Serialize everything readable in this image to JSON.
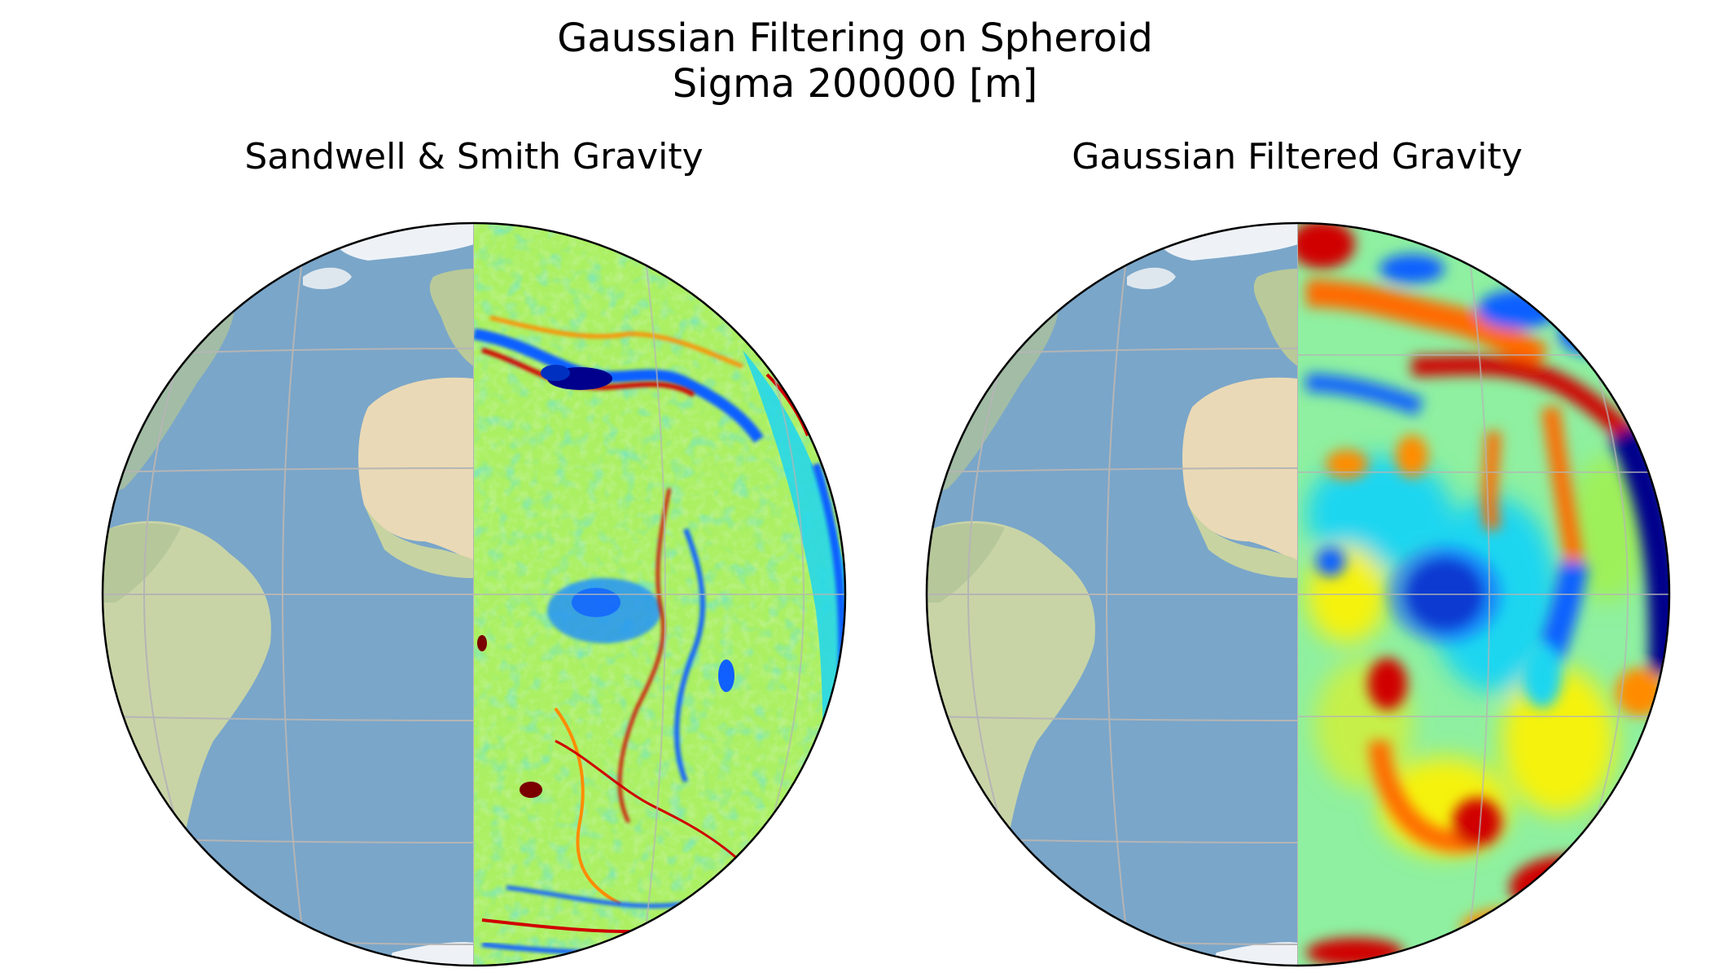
{
  "figure": {
    "suptitle_line1": "Gaussian Filtering on Spheroid",
    "suptitle_line2": "Sigma 200000 [m]"
  },
  "panels": [
    {
      "title": "Sandwell & Smith Gravity",
      "basemap": "stock-image-ocean-land",
      "overlay": "raw-gravity-anomaly-east-half",
      "colormap": "jet"
    },
    {
      "title": "Gaussian Filtered Gravity",
      "basemap": "stock-image-ocean-land",
      "overlay": "gaussian-filtered-gravity-east-half",
      "colormap": "jet"
    }
  ],
  "colors": {
    "ocean": "#7aa6c9",
    "ocean_deep": "#6b98bf",
    "land_green": "#c9d6a8",
    "land_desert": "#ecdcbd",
    "ice": "#f2f4f7",
    "gridline": "#b5b5b5",
    "outline": "#000000",
    "jet_red": "#d00000",
    "jet_darkred": "#7a0000",
    "jet_orange": "#ff8c00",
    "jet_yellow": "#f5f20a",
    "jet_green": "#9ef05a",
    "jet_cyan": "#1ed6f0",
    "jet_blue": "#1060ff",
    "jet_darkblue": "#00008c"
  }
}
